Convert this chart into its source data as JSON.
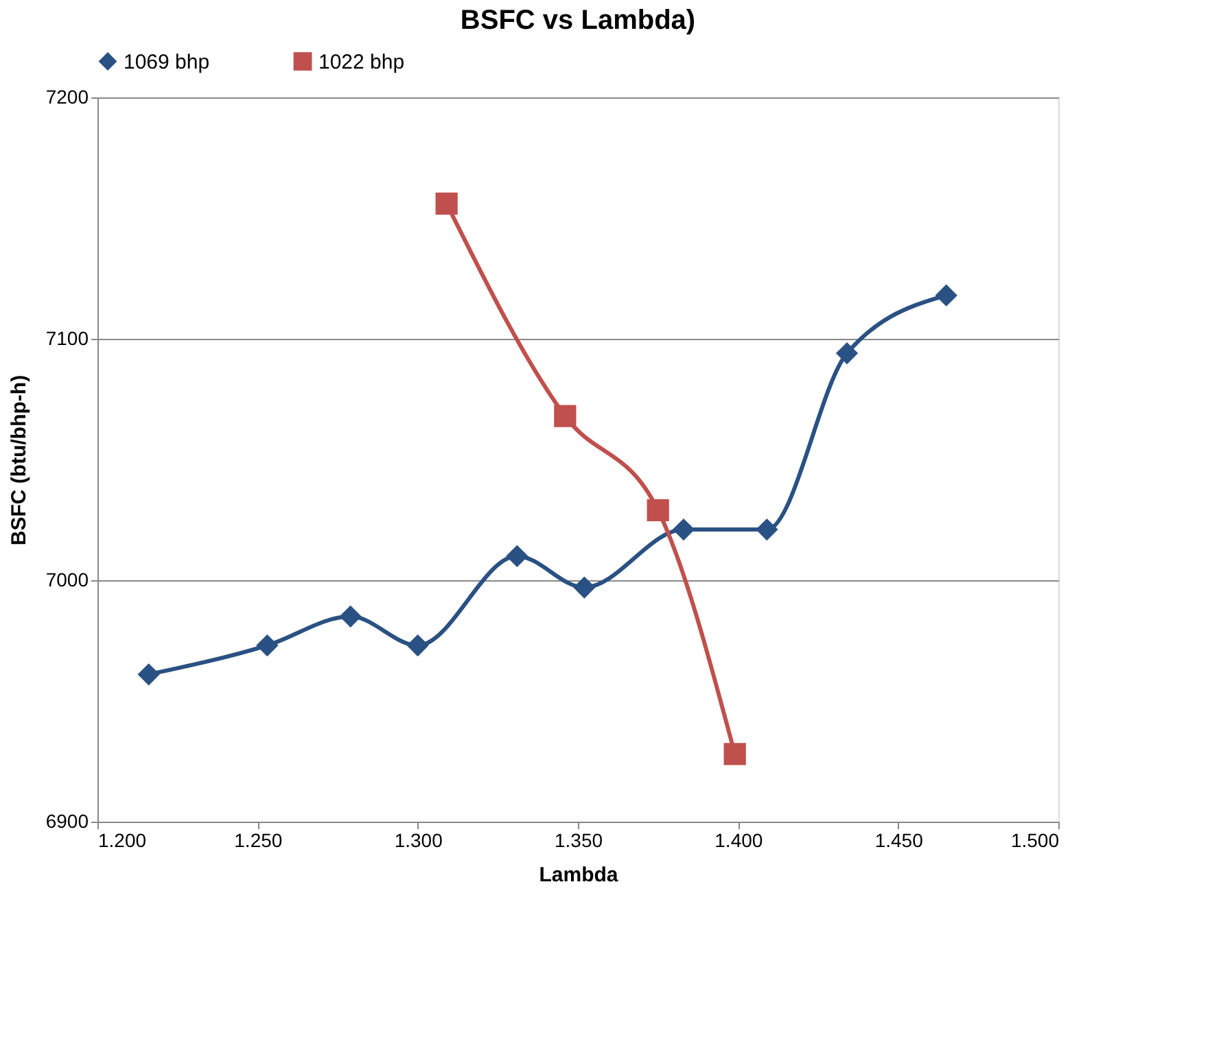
{
  "chart_data": {
    "type": "line",
    "title": "BSFC vs Lambda)",
    "xlabel": "Lambda",
    "ylabel": "BSFC (btu/bhp-h)",
    "xlim": [
      1.2,
      1.5
    ],
    "xticks": [
      {
        "value": 1.2,
        "label": "1.200"
      },
      {
        "value": 1.25,
        "label": "1.250"
      },
      {
        "value": 1.3,
        "label": "1.300"
      },
      {
        "value": 1.35,
        "label": "1.350"
      },
      {
        "value": 1.4,
        "label": "1.400"
      },
      {
        "value": 1.45,
        "label": "1.450"
      },
      {
        "value": 1.5,
        "label": "1.500"
      }
    ],
    "ylim": [
      6900,
      7200
    ],
    "yticks": [
      6900,
      7000,
      7100,
      7200
    ],
    "grid": "y",
    "legend": "top",
    "line_style": "solid",
    "series": [
      {
        "name": "1069 bhp",
        "color": "#2a5183",
        "marker": "diamond",
        "x": [
          1.216,
          1.253,
          1.279,
          1.3,
          1.331,
          1.352,
          1.383,
          1.409,
          1.434,
          1.465
        ],
        "values": [
          6961,
          6973,
          6985,
          6973,
          7010,
          6997,
          7021,
          7021,
          7094,
          7118
        ]
      },
      {
        "name": "1022 bhp",
        "color": "#c0504d",
        "marker": "square",
        "x": [
          1.309,
          1.346,
          1.375,
          1.399
        ],
        "values": [
          7156,
          7068,
          7029,
          6928
        ]
      }
    ]
  }
}
